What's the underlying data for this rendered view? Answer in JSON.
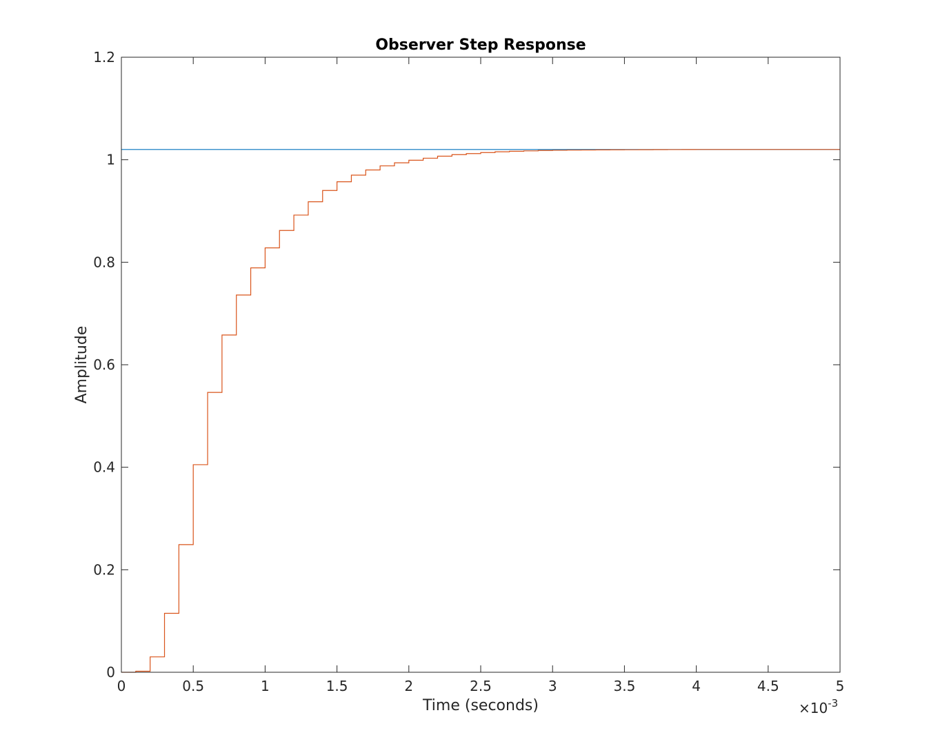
{
  "chart_data": {
    "type": "line",
    "title": "Observer Step Response",
    "xlabel": "Time (seconds)",
    "ylabel": "Amplitude",
    "x_exponent_times": "×10",
    "x_exponent_power": "-3",
    "xlim": [
      0,
      5
    ],
    "ylim": [
      0,
      1.2
    ],
    "xticks": [
      0,
      0.5,
      1,
      1.5,
      2,
      2.5,
      3,
      3.5,
      4,
      4.5,
      5
    ],
    "xtick_labels": [
      "0",
      "0.5",
      "1",
      "1.5",
      "2",
      "2.5",
      "3",
      "3.5",
      "4",
      "4.5",
      "5"
    ],
    "yticks": [
      0,
      0.2,
      0.4,
      0.6,
      0.8,
      1,
      1.2
    ],
    "ytick_labels": [
      "0",
      "0.2",
      "0.4",
      "0.6",
      "0.8",
      "1",
      "1.2"
    ],
    "grid": false,
    "series": [
      {
        "style": "line",
        "color": "#0072BD",
        "x": [
          0,
          5
        ],
        "y": [
          1.02,
          1.02
        ]
      },
      {
        "style": "stairs",
        "color": "#D95319",
        "x": [
          0,
          0.1,
          0.2,
          0.3,
          0.4,
          0.5,
          0.6,
          0.7,
          0.8,
          0.9,
          1.0,
          1.1,
          1.2,
          1.3,
          1.4,
          1.5,
          1.6,
          1.7,
          1.8,
          1.9,
          2.0,
          2.1,
          2.2,
          2.3,
          2.4,
          2.5,
          2.6,
          2.7,
          2.8,
          2.9,
          3.0,
          3.1,
          3.2,
          3.3,
          3.4,
          3.5,
          3.6,
          3.7,
          3.8,
          3.9,
          4.0,
          5.0
        ],
        "y": [
          0,
          0.002,
          0.03,
          0.115,
          0.249,
          0.405,
          0.546,
          0.658,
          0.736,
          0.789,
          0.828,
          0.862,
          0.892,
          0.918,
          0.94,
          0.957,
          0.97,
          0.98,
          0.988,
          0.994,
          0.999,
          1.003,
          1.007,
          1.01,
          1.012,
          1.014,
          1.0155,
          1.0165,
          1.0173,
          1.018,
          1.0185,
          1.0188,
          1.019,
          1.0192,
          1.0194,
          1.0195,
          1.0196,
          1.0197,
          1.0198,
          1.0199,
          1.02,
          1.02
        ]
      }
    ]
  }
}
